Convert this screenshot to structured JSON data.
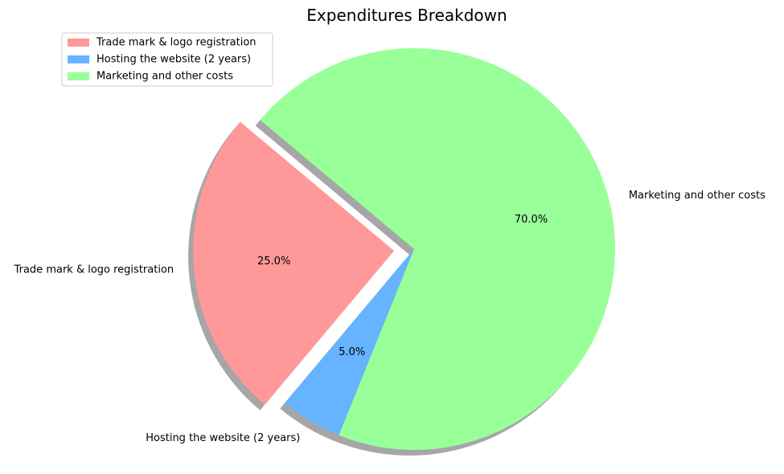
{
  "chart_data": {
    "type": "pie",
    "title": "Expenditures Breakdown",
    "categories": [
      "Trade mark & logo registration",
      "Hosting the website (2 years)",
      "Marketing and other costs"
    ],
    "values": [
      25.0,
      5.0,
      70.0
    ],
    "percent_labels": [
      "25.0%",
      "5.0%",
      "70.0%"
    ],
    "colors": [
      "#ff9999",
      "#66b3ff",
      "#99ff99"
    ],
    "explode": [
      0.1,
      0,
      0
    ],
    "start_angle_deg": 140,
    "shadow": true,
    "legend_position": "upper-left"
  }
}
